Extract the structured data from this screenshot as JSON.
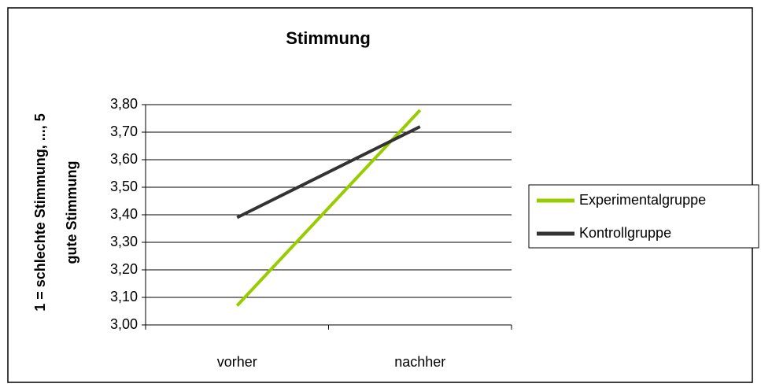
{
  "chart_data": {
    "type": "line",
    "title": "Stimmung",
    "ylabel": [
      "1 = schlechte Stimmung, ..., 5",
      "gute Stimmung"
    ],
    "categories": [
      "vorher",
      "nachher"
    ],
    "series": [
      {
        "name": "Experimentalgruppe",
        "color": "#99cc00",
        "values": [
          3.07,
          3.78
        ]
      },
      {
        "name": "Kontrollgruppe",
        "color": "#333333",
        "values": [
          3.39,
          3.72
        ]
      }
    ],
    "ylim": [
      3.0,
      3.8
    ],
    "yticks": [
      {
        "value": 3.0,
        "label": "3,00"
      },
      {
        "value": 3.1,
        "label": "3,10"
      },
      {
        "value": 3.2,
        "label": "3,20"
      },
      {
        "value": 3.3,
        "label": "3,30"
      },
      {
        "value": 3.4,
        "label": "3,40"
      },
      {
        "value": 3.5,
        "label": "3,50"
      },
      {
        "value": 3.6,
        "label": "3,60"
      },
      {
        "value": 3.7,
        "label": "3,70"
      },
      {
        "value": 3.8,
        "label": "3,80"
      }
    ],
    "grid": true,
    "legend": "right"
  }
}
